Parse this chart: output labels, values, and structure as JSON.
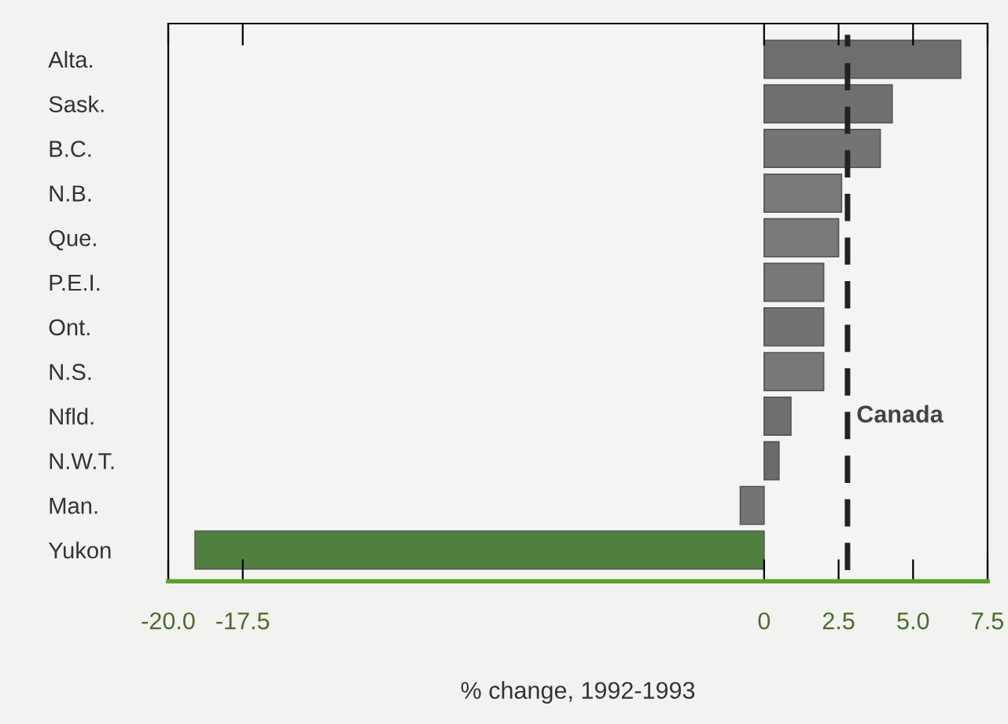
{
  "chart_data": {
    "type": "bar",
    "orientation": "horizontal",
    "xlabel": "% change, 1992-1993",
    "categories": [
      "Alta.",
      "Sask.",
      "B.C.",
      "N.B.",
      "Que.",
      "P.E.I.",
      "Ont.",
      "N.S.",
      "Nfld.",
      "N.W.T.",
      "Man.",
      "Yukon"
    ],
    "values": [
      6.6,
      4.3,
      3.9,
      2.6,
      2.5,
      2.0,
      2.0,
      2.0,
      0.9,
      0.5,
      -0.8,
      -19.1
    ],
    "colors": [
      "#6e6e6e",
      "#707070",
      "#747474",
      "#7a7a7a",
      "#7a7a7a",
      "#787878",
      "#727272",
      "#787878",
      "#6e6e6e",
      "#6a6a6a",
      "#747474",
      "#4f7f3f"
    ],
    "xlim": [
      -20,
      7.5
    ],
    "xticks": [
      {
        "value": -20,
        "label": "-20.0"
      },
      -17.5,
      0,
      2.5,
      {
        "value": 5,
        "label": "5.0"
      },
      7.5
    ],
    "ref_lines": [
      {
        "axis": "x",
        "value": 2.8,
        "label": "Canada",
        "color": "#222222",
        "line_style": "dashed"
      }
    ],
    "grid": false,
    "legend": false
  }
}
